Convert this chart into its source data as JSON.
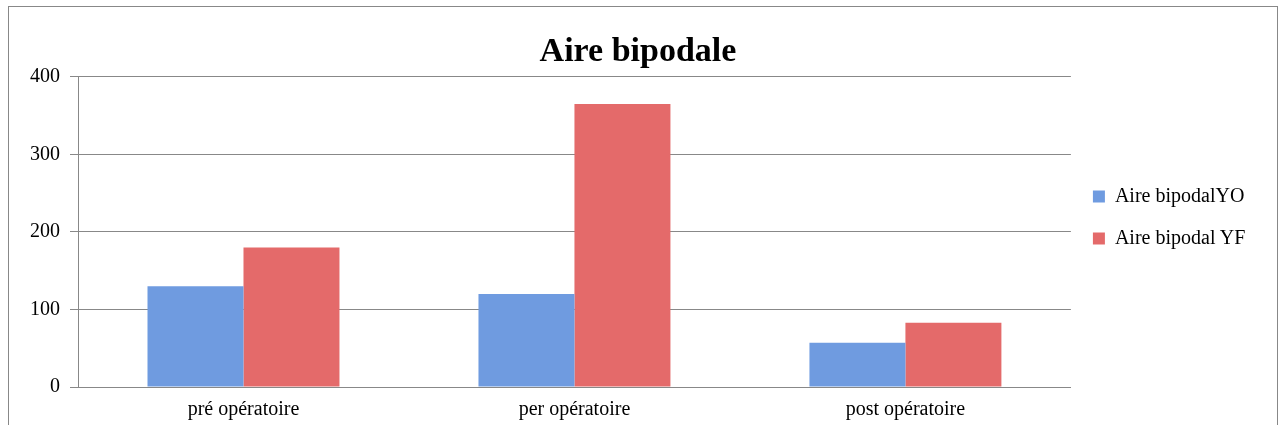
{
  "chart_data": {
    "type": "bar",
    "title": "Aire bipodale",
    "categories": [
      "pré opératoire",
      "per opératoire",
      "post opératoire"
    ],
    "series": [
      {
        "name": "Aire bipodalYO",
        "color": "#6f9be0",
        "values": [
          130,
          120,
          57
        ]
      },
      {
        "name": "Aire bipodal YF",
        "color": "#e46a6a",
        "values": [
          180,
          365,
          83
        ]
      }
    ],
    "ylim": [
      0,
      400
    ],
    "yticks": [
      0,
      100,
      200,
      300,
      400
    ],
    "grid": "y",
    "legend": "right"
  }
}
